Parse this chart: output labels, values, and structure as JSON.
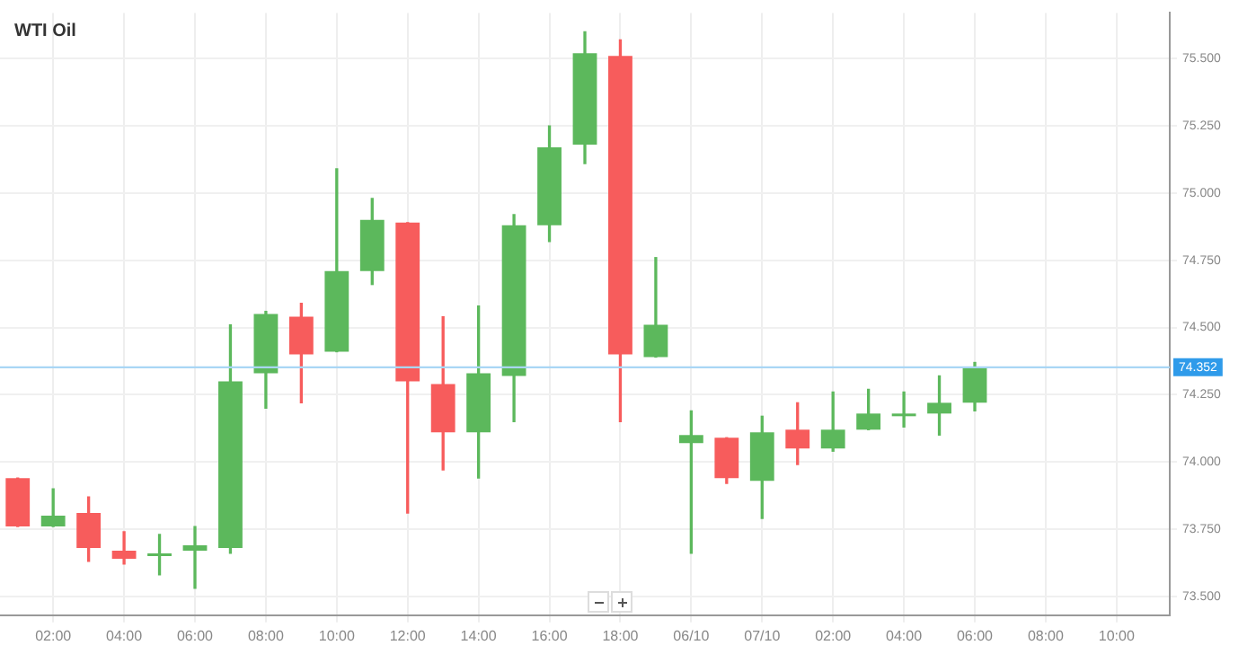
{
  "chart_data": {
    "type": "candlestick",
    "title": "WTI Oil",
    "categories": [
      null,
      "02:00",
      null,
      "04:00",
      null,
      "06:00",
      null,
      "08:00",
      null,
      "10:00",
      null,
      "12:00",
      null,
      "14:00",
      null,
      "16:00",
      null,
      "18:00",
      null,
      "06/10",
      null,
      "07/10",
      null,
      "02:00",
      null,
      "04:00",
      null,
      "06:00",
      null,
      "08:00",
      null,
      "10:00",
      null
    ],
    "ohlc": [
      [
        73.94,
        73.94,
        73.76,
        73.76
      ],
      [
        73.76,
        73.9,
        73.76,
        73.8
      ],
      [
        73.81,
        73.87,
        73.63,
        73.68
      ],
      [
        73.67,
        73.74,
        73.62,
        73.64
      ],
      [
        73.65,
        73.73,
        73.58,
        73.66
      ],
      [
        73.67,
        73.76,
        73.53,
        73.69
      ],
      [
        73.68,
        74.51,
        73.66,
        74.3
      ],
      [
        74.33,
        74.56,
        74.2,
        74.55
      ],
      [
        74.54,
        74.59,
        74.22,
        74.4
      ],
      [
        74.41,
        75.09,
        74.41,
        74.71
      ],
      [
        74.71,
        74.98,
        74.66,
        74.9
      ],
      [
        74.89,
        74.89,
        73.81,
        74.3
      ],
      [
        74.29,
        74.54,
        73.97,
        74.11
      ],
      [
        74.11,
        74.58,
        73.94,
        74.33
      ],
      [
        74.32,
        74.92,
        74.15,
        74.88
      ],
      [
        74.88,
        75.25,
        74.82,
        75.17
      ],
      [
        75.18,
        75.6,
        75.11,
        75.52
      ],
      [
        75.51,
        75.57,
        74.15,
        74.4
      ],
      [
        74.39,
        74.76,
        74.39,
        74.51
      ],
      [
        74.07,
        74.19,
        73.66,
        74.1
      ],
      [
        74.09,
        74.09,
        73.92,
        73.94
      ],
      [
        73.93,
        74.17,
        73.79,
        74.11
      ],
      [
        74.12,
        74.22,
        73.99,
        74.05
      ],
      [
        74.05,
        74.26,
        74.04,
        74.12
      ],
      [
        74.12,
        74.27,
        74.12,
        74.18
      ],
      [
        74.17,
        74.26,
        74.13,
        74.18
      ],
      [
        74.18,
        74.32,
        74.1,
        74.22
      ],
      [
        74.22,
        74.37,
        74.19,
        74.35
      ],
      null,
      null,
      null,
      null,
      null
    ],
    "colors": [
      "#f75c5c",
      "#5cb85c",
      "#f75c5c",
      "#f75c5c",
      "#5cb85c",
      "#5cb85c",
      "#5cb85c",
      "#5cb85c",
      "#f75c5c",
      "#5cb85c",
      "#5cb85c",
      "#f75c5c",
      "#f75c5c",
      "#5cb85c",
      "#5cb85c",
      "#5cb85c",
      "#5cb85c",
      "#f75c5c",
      "#5cb85c",
      "#5cb85c",
      "#f75c5c",
      "#5cb85c",
      "#f75c5c",
      "#5cb85c",
      "#5cb85c",
      "#5cb85c",
      "#5cb85c",
      "#5cb85c",
      null,
      null,
      null,
      null,
      null
    ],
    "ylim": [
      73.43,
      75.67
    ],
    "yticks": [
      {
        "value": 73.5,
        "label": "73.500"
      },
      {
        "value": 73.75,
        "label": "73.750"
      },
      {
        "value": 74,
        "label": "74.000"
      },
      {
        "value": 74.25,
        "label": "74.250"
      },
      {
        "value": 74.5,
        "label": "74.500"
      },
      {
        "value": 74.75,
        "label": "74.750"
      },
      {
        "value": 75,
        "label": "75.000"
      },
      {
        "value": 75.25,
        "label": "75.250"
      },
      {
        "value": 75.5,
        "label": "75.500"
      }
    ],
    "ref_lines": [
      {
        "axis": "y",
        "value": 74.352,
        "label": "74.352",
        "color": "#a9d6f5"
      }
    ],
    "grid": true,
    "legend": false
  }
}
